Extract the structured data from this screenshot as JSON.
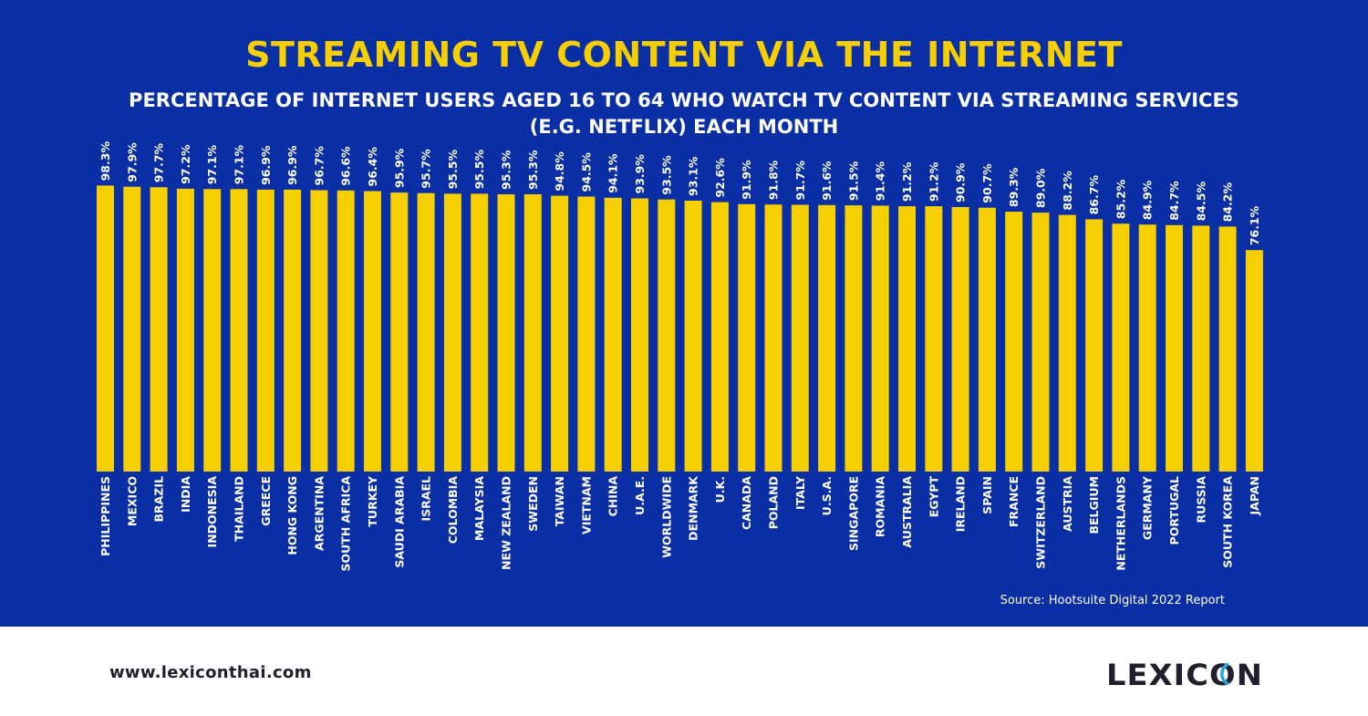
{
  "header": {
    "title": "STREAMING TV CONTENT VIA THE INTERNET",
    "subtitle_line1": "PERCENTAGE OF INTERNET USERS AGED 16 TO 64 WHO WATCH TV CONTENT VIA STREAMING SERVICES",
    "subtitle_line2": "(E.G. NETFLIX) EACH MONTH"
  },
  "source": "Source: Hootsuite Digital 2022 Report",
  "footer": {
    "url": "www.lexiconthai.com",
    "logo_text": "LEXICON"
  },
  "colors": {
    "background": "#0a2ea3",
    "bar": "#f6cf00",
    "title": "#f6cf00",
    "text": "#ffffff"
  },
  "chart_data": {
    "type": "bar",
    "title": "STREAMING TV CONTENT VIA THE INTERNET",
    "subtitle": "PERCENTAGE OF INTERNET USERS AGED 16 TO 64 WHO WATCH TV CONTENT VIA STREAMING SERVICES (E.G. NETFLIX) EACH MONTH",
    "xlabel": "",
    "ylabel": "",
    "ylim": [
      0,
      100
    ],
    "grid": false,
    "value_suffix": "%",
    "categories": [
      "PHILIPPINES",
      "MEXICO",
      "BRAZIL",
      "INDIA",
      "INDONESIA",
      "THAILAND",
      "GREECE",
      "HONG KONG",
      "ARGENTINA",
      "SOUTH AFRICA",
      "TURKEY",
      "SAUDI ARABIA",
      "ISRAEL",
      "COLOMBIA",
      "MALAYSIA",
      "NEW ZEALAND",
      "SWEDEN",
      "TAIWAN",
      "VIETNAM",
      "CHINA",
      "U.A.E.",
      "WORLDWIDE",
      "DENMARK",
      "U.K.",
      "CANADA",
      "POLAND",
      "ITALY",
      "U.S.A.",
      "SINGAPORE",
      "ROMANIA",
      "AUSTRALIA",
      "EGYPT",
      "IRELAND",
      "SPAIN",
      "FRANCE",
      "SWITZERLAND",
      "AUSTRIA",
      "BELGIUM",
      "NETHERLANDS",
      "GERMANY",
      "PORTUGAL",
      "RUSSIA",
      "SOUTH KOREA",
      "JAPAN"
    ],
    "values": [
      98.3,
      97.9,
      97.7,
      97.2,
      97.1,
      97.1,
      96.9,
      96.9,
      96.7,
      96.6,
      96.4,
      95.9,
      95.7,
      95.5,
      95.5,
      95.3,
      95.3,
      94.8,
      94.5,
      94.1,
      93.9,
      93.5,
      93.1,
      92.6,
      91.9,
      91.8,
      91.7,
      91.6,
      91.5,
      91.4,
      91.2,
      91.2,
      90.9,
      90.7,
      89.3,
      89.0,
      88.2,
      86.7,
      85.2,
      84.9,
      84.7,
      84.5,
      84.2,
      76.1
    ],
    "data_labels": [
      "98.3%",
      "97.9%",
      "97.7%",
      "97.2%",
      "97.1%",
      "97.1%",
      "96.9%",
      "96.9%",
      "96.7%",
      "96.6%",
      "96.4%",
      "95.9%",
      "95.7%",
      "95.5%",
      "95.5%",
      "95.3%",
      "95.3%",
      "94.8%",
      "94.5%",
      "94.1%",
      "93.9%",
      "93.5%",
      "93.1%",
      "92.6%",
      "91.9%",
      "91.8%",
      "91.7%",
      "91.6%",
      "91.5%",
      "91.4%",
      "91.2%",
      "91.2%",
      "90.9%",
      "90.7%",
      "89.3%",
      "89.0%",
      "88.2%",
      "86.7%",
      "85.2%",
      "84.9%",
      "84.7%",
      "84.5%",
      "84.2%",
      "76.1%"
    ]
  }
}
